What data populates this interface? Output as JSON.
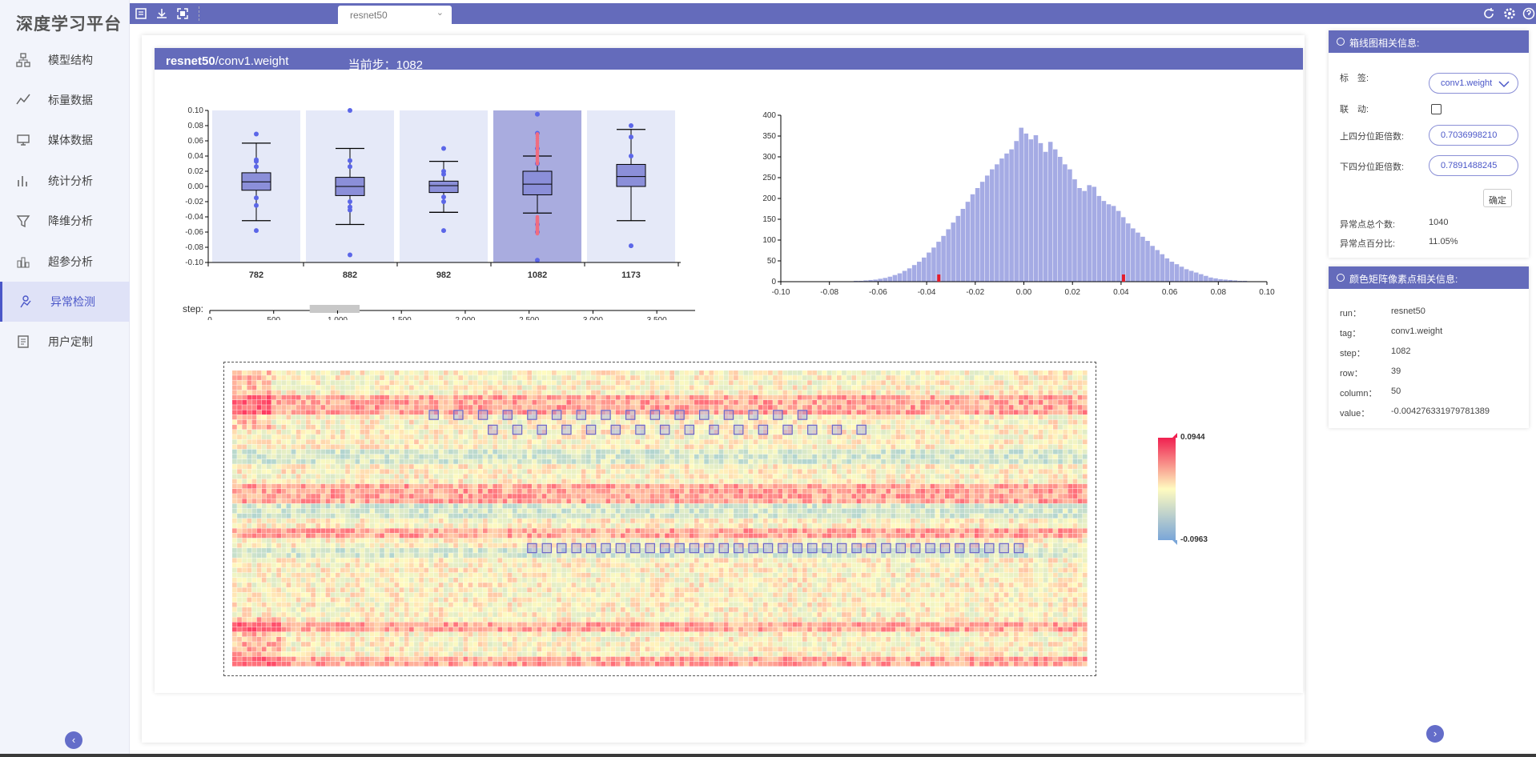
{
  "app_title": "深度学习平台",
  "nav": [
    {
      "label": "模型结构",
      "icon": "model-structure-icon"
    },
    {
      "label": "标量数据",
      "icon": "scalar-chart-icon"
    },
    {
      "label": "媒体数据",
      "icon": "media-icon"
    },
    {
      "label": "统计分析",
      "icon": "statistics-icon"
    },
    {
      "label": "降维分析",
      "icon": "funnel-icon"
    },
    {
      "label": "超参分析",
      "icon": "hyperparam-icon"
    },
    {
      "label": "异常检测",
      "icon": "anomaly-icon",
      "active": true
    },
    {
      "label": "用户定制",
      "icon": "custom-icon"
    }
  ],
  "tab": {
    "label": "resnet50"
  },
  "header": {
    "run": "resnet50",
    "tag": "/conv1.weight",
    "step_label": "当前步：",
    "step_value": "1082"
  },
  "chart_data": [
    {
      "type": "box",
      "categories": [
        "782",
        "882",
        "982",
        "1082",
        "1173"
      ],
      "ylim": [
        -0.1,
        0.1
      ],
      "yticks": [
        "0.10",
        "0.08",
        "0.06",
        "0.04",
        "0.02",
        "0.00",
        "-0.02",
        "-0.04",
        "-0.06",
        "-0.08",
        "-0.10"
      ],
      "boxes": [
        {
          "whisker_low": -0.045,
          "q1": -0.005,
          "median": 0.006,
          "q3": 0.018,
          "whisker_high": 0.057,
          "outliers": [
            0.069,
            0.035,
            0.033,
            0.026,
            -0.015,
            -0.025,
            -0.058
          ]
        },
        {
          "whisker_low": -0.05,
          "q1": -0.012,
          "median": 0.0,
          "q3": 0.012,
          "whisker_high": 0.05,
          "outliers": [
            0.1,
            0.034,
            0.026,
            -0.02,
            -0.027,
            -0.031,
            -0.09
          ]
        },
        {
          "whisker_low": -0.034,
          "q1": -0.008,
          "median": 0.001,
          "q3": 0.007,
          "whisker_high": 0.033,
          "outliers": [
            0.05,
            0.02,
            0.016,
            -0.014,
            -0.02,
            -0.058
          ]
        },
        {
          "whisker_low": -0.035,
          "q1": -0.011,
          "median": 0.003,
          "q3": 0.02,
          "whisker_high": 0.04,
          "outliers": [
            0.095,
            0.07,
            0.05,
            0.03,
            -0.05,
            -0.06,
            -0.097
          ],
          "selected": true
        },
        {
          "whisker_low": -0.045,
          "q1": 0.0,
          "median": 0.013,
          "q3": 0.029,
          "whisker_high": 0.075,
          "outliers": [
            0.08,
            0.065,
            0.04,
            -0.078
          ]
        }
      ]
    },
    {
      "type": "range-slider",
      "label": "step:",
      "xlim": [
        0,
        3800
      ],
      "ticks": [
        "0",
        "500",
        "1,000",
        "1,500",
        "2,000",
        "2,500",
        "3,000",
        "3,500"
      ],
      "window": [
        782,
        1173
      ]
    },
    {
      "type": "bar",
      "xlim": [
        -0.1,
        0.1
      ],
      "ylim": [
        0,
        400
      ],
      "xticks": [
        "-0.10",
        "-0.08",
        "-0.06",
        "-0.04",
        "-0.02",
        "0.00",
        "0.02",
        "0.04",
        "0.06",
        "0.08",
        "0.10"
      ],
      "yticks": [
        "400",
        "350",
        "300",
        "250",
        "200",
        "150",
        "100",
        "50",
        "0"
      ],
      "markers": [
        -0.035,
        0.041
      ],
      "values": [
        0,
        0,
        0,
        0,
        0,
        0,
        0,
        0,
        0,
        0,
        0,
        0,
        1,
        1,
        1,
        2,
        2,
        3,
        4,
        5,
        7,
        9,
        12,
        16,
        20,
        26,
        32,
        40,
        48,
        58,
        70,
        82,
        96,
        110,
        126,
        142,
        158,
        175,
        192,
        210,
        225,
        240,
        255,
        270,
        282,
        296,
        308,
        318,
        338,
        370,
        356,
        342,
        352,
        333,
        312,
        336,
        318,
        300,
        282,
        270,
        246,
        225,
        218,
        232,
        228,
        206,
        194,
        186,
        182,
        170,
        155,
        140,
        128,
        118,
        108,
        98,
        86,
        76,
        66,
        56,
        48,
        42,
        36,
        30,
        26,
        22,
        18,
        14,
        10,
        8,
        6,
        5,
        4,
        3,
        2,
        2,
        1,
        1,
        1,
        0
      ]
    },
    {
      "type": "heatmap",
      "rows": 60,
      "cols": 174,
      "color_scale": {
        "max": "0.0944",
        "min": "-0.0963",
        "max_color": "#f02050",
        "mid_color": "#fffbc0",
        "min_color": "#7aa6d8"
      }
    }
  ],
  "box_info": {
    "title": "箱线图相关信息:",
    "tag_label": "标　签:",
    "tag_value": "conv1.weight",
    "link_label": "联　动:",
    "upper_label": "上四分位距倍数:",
    "upper_value": "0.7036998210",
    "lower_label": "下四分位距倍数:",
    "lower_value": "0.7891488245",
    "confirm": "确定",
    "count_label": "异常点总个数:",
    "count_value": "1040",
    "pct_label": "异常点百分比:",
    "pct_value": "11.05%"
  },
  "pixel_info": {
    "title": "颜色矩阵像素点相关信息:",
    "rows": [
      {
        "k": "run：",
        "v": "resnet50"
      },
      {
        "k": "tag：",
        "v": "conv1.weight"
      },
      {
        "k": "step：",
        "v": "1082"
      },
      {
        "k": "row：",
        "v": "39"
      },
      {
        "k": "column：",
        "v": "50"
      },
      {
        "k": "value：",
        "v": "-0.004276331979781389"
      }
    ]
  }
}
